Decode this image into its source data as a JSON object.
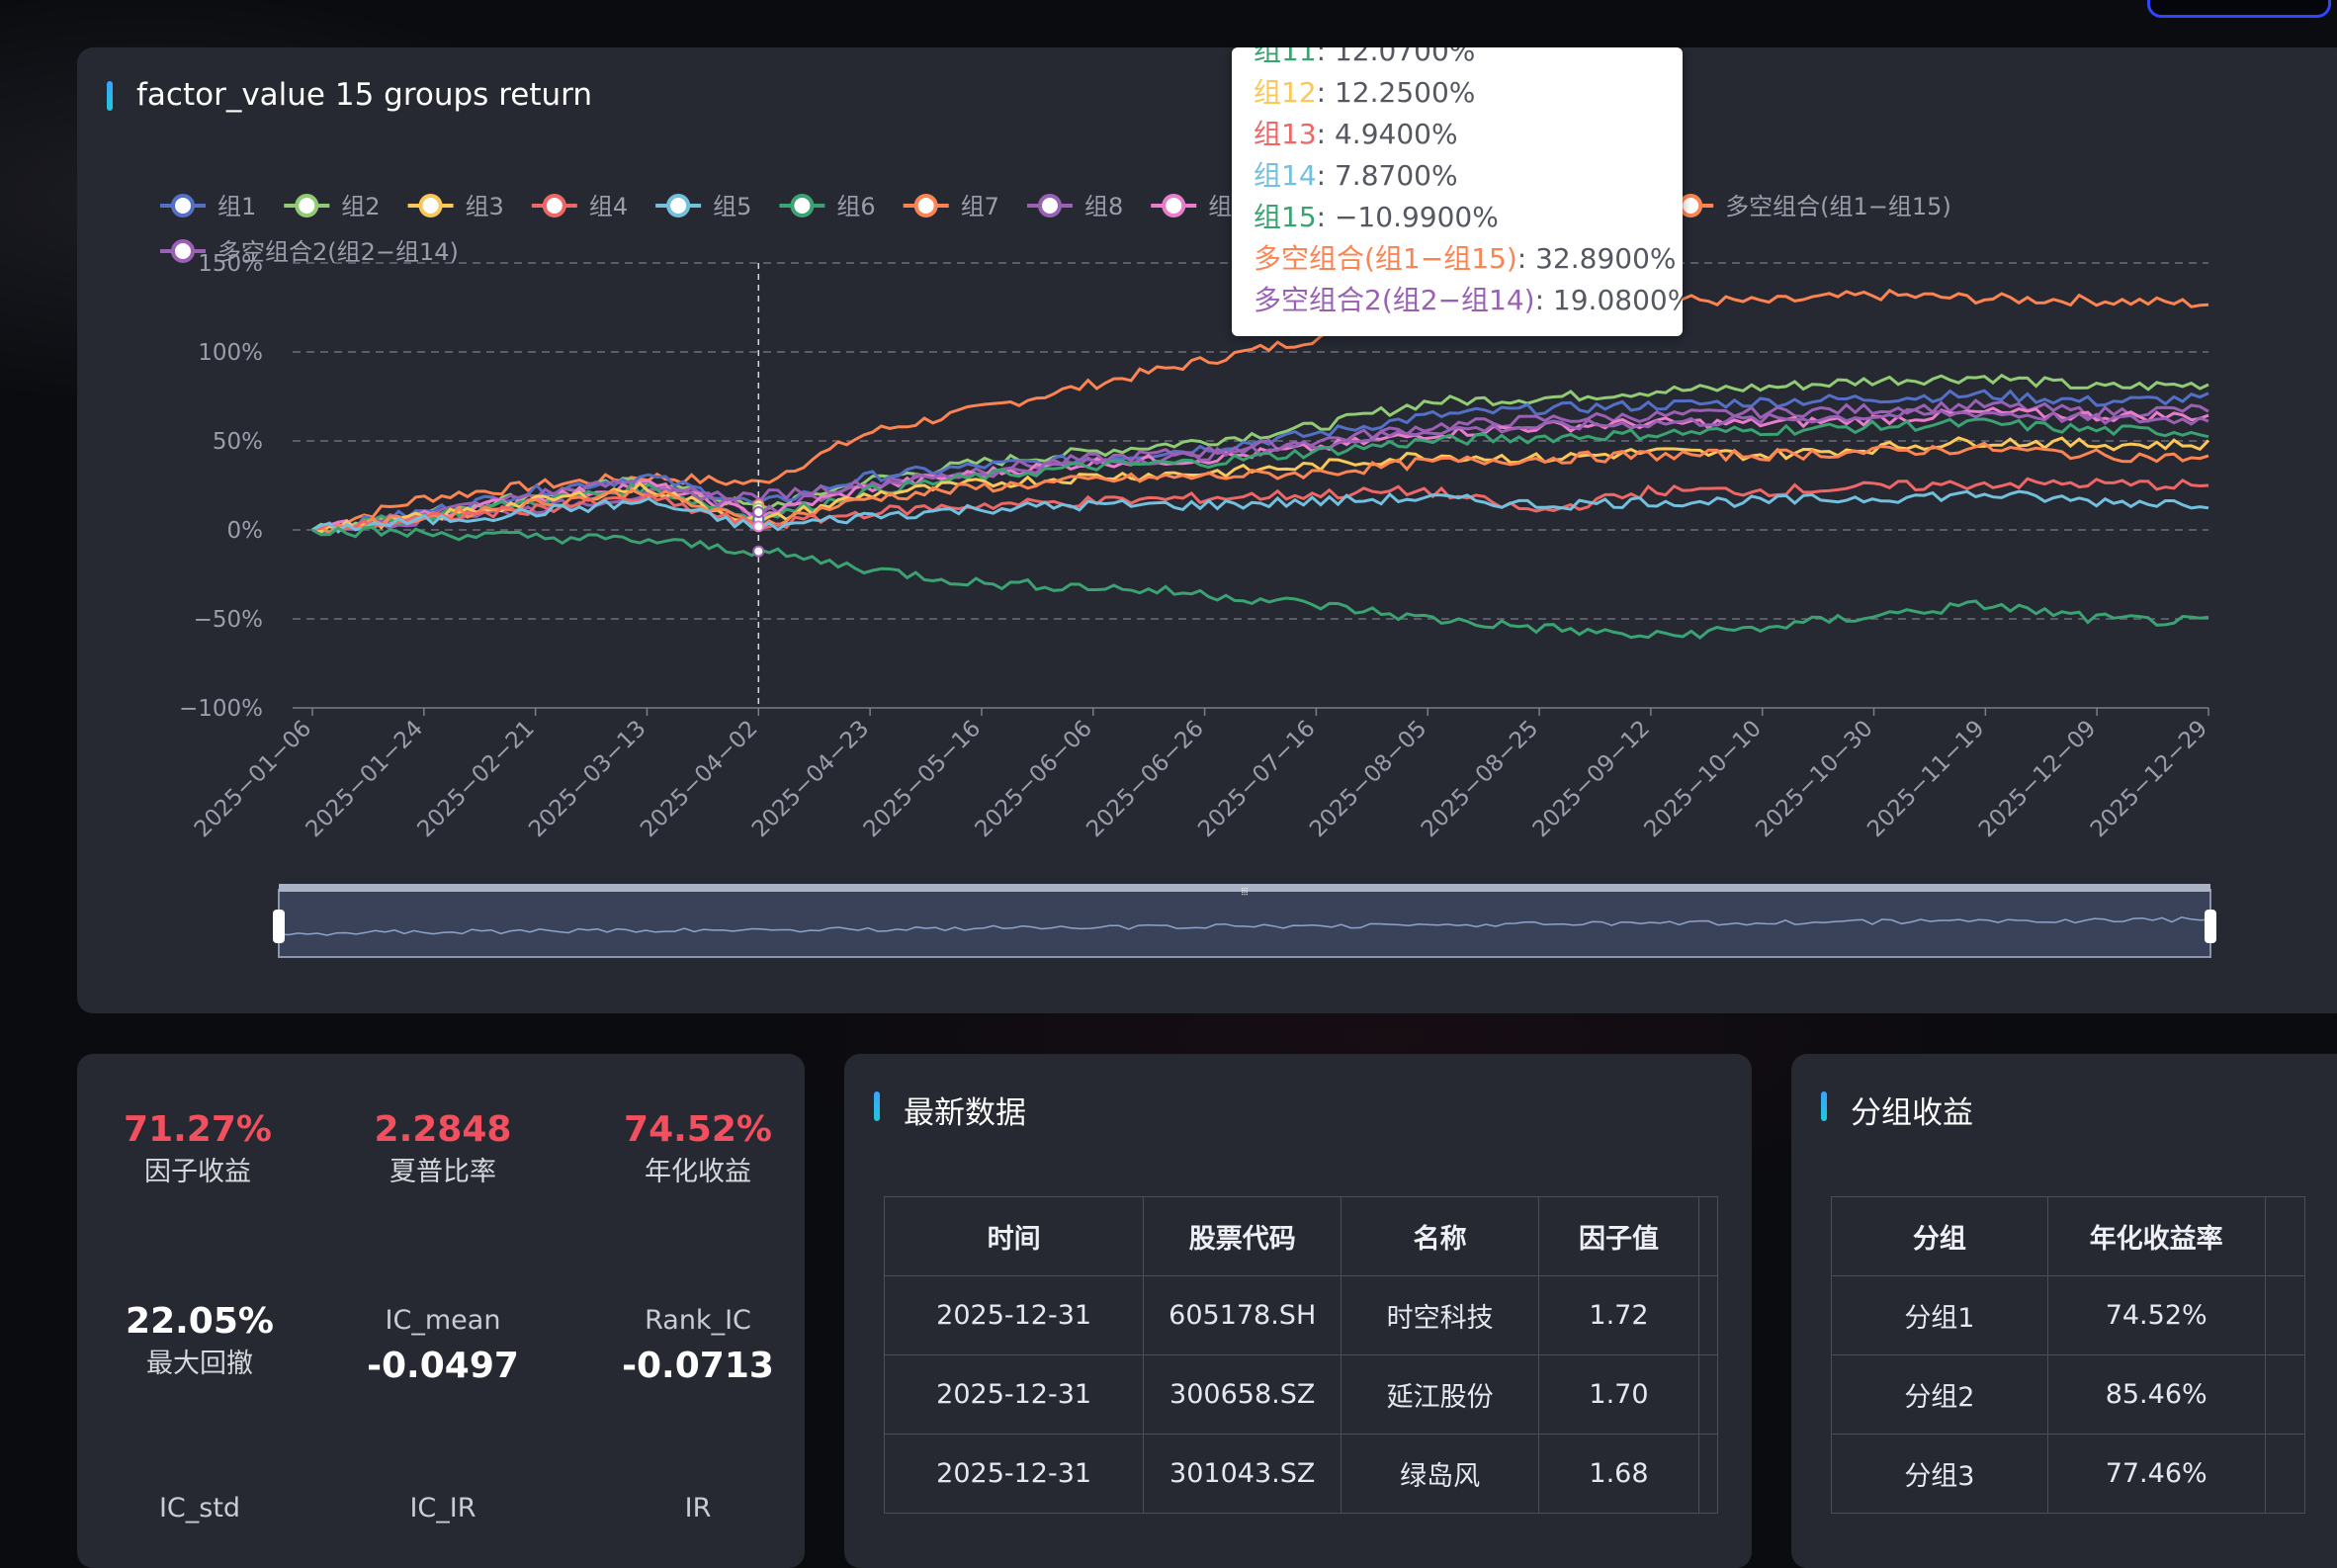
{
  "chart": {
    "title": "factor_value 15 groups return",
    "legend": [
      {
        "name": "组1",
        "color": "#5470c6"
      },
      {
        "name": "组2",
        "color": "#91cc75"
      },
      {
        "name": "组3",
        "color": "#fac858"
      },
      {
        "name": "组4",
        "color": "#ee6666"
      },
      {
        "name": "组5",
        "color": "#73c0de"
      },
      {
        "name": "组6",
        "color": "#3ba272"
      },
      {
        "name": "组7",
        "color": "#fc8452"
      },
      {
        "name": "组8",
        "color": "#9a60b4"
      },
      {
        "name": "组9",
        "color": "#ea7ccc"
      },
      {
        "name": "13",
        "color": "#ee6666"
      },
      {
        "name": "组14",
        "color": "#73c0de"
      },
      {
        "name": "组15",
        "color": "#3ba272"
      },
      {
        "name": "多空组合(组1−组15)",
        "color": "#fc8452"
      },
      {
        "name": "多空组合2(组2−组14)",
        "color": "#9a60b4"
      }
    ],
    "y_ticks": [
      "150%",
      "100%",
      "50%",
      "0%",
      "−50%",
      "−100%"
    ],
    "x_ticks": [
      "2025−01−06",
      "2025−01−24",
      "2025−02−21",
      "2025−03−13",
      "2025−04−02",
      "2025−04−23",
      "2025−05−16",
      "2025−06−06",
      "2025−06−26",
      "2025−07−16",
      "2025−08−05",
      "2025−08−25",
      "2025−09−12",
      "2025−10−10",
      "2025−10−30",
      "2025−11−19",
      "2025−12−09",
      "2025−12−29"
    ],
    "tooltip": [
      {
        "name": "组11",
        "value": "12.0700%",
        "color": "#3ba272"
      },
      {
        "name": "组12",
        "value": "12.2500%",
        "color": "#fac858"
      },
      {
        "name": "组13",
        "value": "4.9400%",
        "color": "#ee6666"
      },
      {
        "name": "组14",
        "value": "7.8700%",
        "color": "#73c0de"
      },
      {
        "name": "组15",
        "value": "−10.9900%",
        "color": "#3ba272"
      },
      {
        "name": "多空组合(组1−组15)",
        "value": "32.8900%",
        "color": "#fc8452"
      },
      {
        "name": "多空组合2(组2−组14)",
        "value": "19.0800%",
        "color": "#9a60b4"
      }
    ],
    "zoom_handle": "⦙⦙⦙"
  },
  "chart_data": {
    "type": "line",
    "ylim": [
      -100,
      150
    ],
    "x_range": [
      "2025-01-06",
      "2025-12-31"
    ],
    "series": [
      {
        "name": "多空组合(组1−组15)",
        "color": "#fc8452",
        "values": [
          0,
          18,
          25,
          30,
          26,
          55,
          68,
          82,
          95,
          108,
          122,
          128,
          130,
          128,
          132,
          130,
          129,
          127
        ]
      },
      {
        "name": "组2",
        "color": "#91cc75",
        "values": [
          0,
          10,
          20,
          28,
          12,
          28,
          38,
          44,
          50,
          58,
          72,
          74,
          78,
          80,
          84,
          86,
          80,
          82
        ]
      },
      {
        "name": "组1",
        "color": "#5470c6",
        "values": [
          0,
          10,
          22,
          30,
          14,
          30,
          36,
          40,
          46,
          54,
          64,
          68,
          70,
          72,
          74,
          76,
          72,
          74
        ]
      },
      {
        "name": "组8",
        "color": "#9a60b4",
        "values": [
          0,
          9,
          20,
          28,
          10,
          26,
          34,
          40,
          44,
          50,
          58,
          62,
          64,
          66,
          68,
          70,
          66,
          68
        ]
      },
      {
        "name": "组9",
        "color": "#ea7ccc",
        "values": [
          0,
          8,
          18,
          26,
          8,
          24,
          32,
          38,
          40,
          46,
          54,
          58,
          60,
          60,
          62,
          66,
          64,
          64
        ]
      },
      {
        "name": "多空组合2(组2−组14)",
        "color": "#9a60b4",
        "values": [
          0,
          6,
          12,
          20,
          19,
          26,
          32,
          38,
          42,
          48,
          56,
          58,
          60,
          62,
          64,
          66,
          62,
          62
        ]
      },
      {
        "name": "组6",
        "color": "#3ba272",
        "values": [
          0,
          8,
          16,
          24,
          6,
          22,
          30,
          36,
          38,
          44,
          50,
          52,
          54,
          56,
          58,
          60,
          56,
          55
        ]
      },
      {
        "name": "组3",
        "color": "#fac858",
        "values": [
          0,
          7,
          16,
          24,
          4,
          20,
          26,
          30,
          32,
          36,
          42,
          40,
          44,
          42,
          46,
          50,
          48,
          48
        ]
      },
      {
        "name": "组7",
        "color": "#fc8452",
        "values": [
          0,
          7,
          15,
          22,
          3,
          18,
          24,
          28,
          30,
          32,
          38,
          40,
          42,
          42,
          44,
          46,
          42,
          40
        ]
      },
      {
        "name": "组4",
        "color": "#ee6666",
        "values": [
          0,
          6,
          12,
          18,
          2,
          10,
          14,
          16,
          18,
          20,
          22,
          10,
          22,
          22,
          24,
          26,
          26,
          25
        ]
      },
      {
        "name": "组5",
        "color": "#73c0de",
        "values": [
          0,
          5,
          10,
          16,
          1,
          8,
          12,
          14,
          14,
          16,
          18,
          14,
          16,
          16,
          18,
          20,
          16,
          15
        ]
      },
      {
        "name": "组15",
        "color": "#3ba272",
        "values": [
          0,
          -2,
          -4,
          -6,
          -12,
          -22,
          -30,
          -32,
          -36,
          -42,
          -50,
          -55,
          -60,
          -55,
          -48,
          -42,
          -50,
          -52
        ]
      }
    ]
  },
  "stats": {
    "factor_return": {
      "value": "71.27%",
      "label": "因子收益"
    },
    "sharpe": {
      "value": "2.2848",
      "label": "夏普比率"
    },
    "annual_return": {
      "value": "74.52%",
      "label": "年化收益"
    },
    "max_drawdown": {
      "value": "22.05%",
      "label": "最大回撤"
    },
    "ic_mean": {
      "label": "IC_mean",
      "value": "-0.0497"
    },
    "rank_ic": {
      "label": "Rank_IC",
      "value": "-0.0713"
    },
    "ic_std": {
      "label": "IC_std"
    },
    "ic_ir": {
      "label": "IC_IR"
    },
    "ir": {
      "label": "IR"
    }
  },
  "latest": {
    "title": "最新数据",
    "headers": [
      "时间",
      "股票代码",
      "名称",
      "因子值"
    ],
    "rows": [
      [
        "2025-12-31",
        "605178.SH",
        "时空科技",
        "1.72"
      ],
      [
        "2025-12-31",
        "300658.SZ",
        "延江股份",
        "1.70"
      ],
      [
        "2025-12-31",
        "301043.SZ",
        "绿岛风",
        "1.68"
      ]
    ]
  },
  "groups": {
    "title": "分组收益",
    "headers": [
      "分组",
      "年化收益率"
    ],
    "rows": [
      [
        "分组1",
        "74.52%"
      ],
      [
        "分组2",
        "85.46%"
      ],
      [
        "分组3",
        "77.46%"
      ]
    ]
  }
}
